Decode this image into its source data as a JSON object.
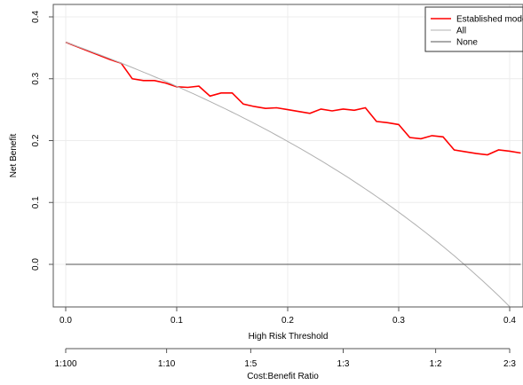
{
  "chart_data": {
    "type": "line",
    "xlabel": "High Risk Threshold",
    "ylabel": "Net Benefit",
    "xlim": [
      0,
      0.41
    ],
    "ylim": [
      -0.06,
      0.4
    ],
    "x_ticks": [
      0,
      0.1,
      0.2,
      0.3,
      0.4
    ],
    "x_tick_labels": [
      "0.0",
      "0.1",
      "0.2",
      "0.3",
      "0.4"
    ],
    "y_ticks": [
      0,
      0.1,
      0.2,
      0.3,
      0.4
    ],
    "y_tick_labels": [
      "0.0",
      "0.1",
      "0.2",
      "0.3",
      "0.4"
    ],
    "grid": true,
    "legend_position": "top-right",
    "secondary_axis": {
      "label": "Cost:Benefit Ratio",
      "ticks": [
        0,
        0.0909,
        0.1667,
        0.25,
        0.3333,
        0.4
      ],
      "tick_labels": [
        "1:100",
        "1:10",
        "1:5",
        "1:3",
        "1:2",
        "2:3"
      ]
    },
    "series": [
      {
        "name": "Established mode",
        "color": "#ff0000",
        "x": [
          0,
          0.01,
          0.02,
          0.03,
          0.04,
          0.05,
          0.06,
          0.07,
          0.08,
          0.09,
          0.1,
          0.11,
          0.12,
          0.13,
          0.14,
          0.15,
          0.16,
          0.17,
          0.18,
          0.19,
          0.2,
          0.21,
          0.22,
          0.23,
          0.24,
          0.25,
          0.26,
          0.27,
          0.28,
          0.29,
          0.3,
          0.31,
          0.32,
          0.33,
          0.34,
          0.35,
          0.36,
          0.37,
          0.38,
          0.39,
          0.4,
          0.41
        ],
        "y": [
          0.359,
          0.352,
          0.345,
          0.338,
          0.331,
          0.325,
          0.3,
          0.297,
          0.297,
          0.293,
          0.287,
          0.286,
          0.288,
          0.272,
          0.277,
          0.277,
          0.259,
          0.255,
          0.252,
          0.253,
          0.25,
          0.247,
          0.244,
          0.251,
          0.248,
          0.251,
          0.249,
          0.253,
          0.231,
          0.229,
          0.226,
          0.205,
          0.203,
          0.208,
          0.206,
          0.185,
          0.182,
          0.179,
          0.177,
          0.185,
          0.183,
          0.18
        ]
      },
      {
        "name": "All",
        "color": "#b0b0b0",
        "prevalence": 0.359
      },
      {
        "name": "None",
        "color": "#555555",
        "x": [
          0,
          0.41
        ],
        "y": [
          0,
          0
        ]
      }
    ]
  }
}
